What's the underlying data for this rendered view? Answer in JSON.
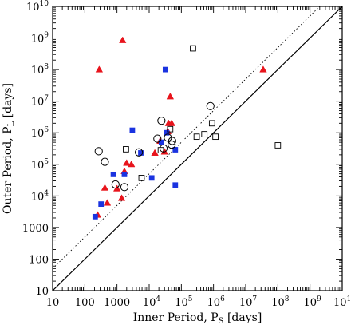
{
  "chart_data": {
    "type": "scatter",
    "title": "",
    "xlabel": "Inner Period, P_S [days]",
    "ylabel": "Outer Period, P_L [days]",
    "xlabel_main": "Inner Period, P",
    "xlabel_sub": "S",
    "xlabel_unit": " [days]",
    "ylabel_main": "Outer Period, P",
    "ylabel_sub": "L",
    "ylabel_unit": " [days]",
    "xscale": "log",
    "yscale": "log",
    "xlim": [
      10,
      10000000000
    ],
    "ylim": [
      10,
      10000000000
    ],
    "x_ticks": [
      {
        "value": 10,
        "label": "10",
        "sup": ""
      },
      {
        "value": 100,
        "label": "100",
        "sup": ""
      },
      {
        "value": 1000,
        "label": "1000",
        "sup": ""
      },
      {
        "value": 10000,
        "label": "10",
        "sup": "4"
      },
      {
        "value": 100000,
        "label": "10",
        "sup": "5"
      },
      {
        "value": 1000000,
        "label": "10",
        "sup": "6"
      },
      {
        "value": 10000000,
        "label": "10",
        "sup": "7"
      },
      {
        "value": 100000000,
        "label": "10",
        "sup": "8"
      },
      {
        "value": 1000000000,
        "label": "10",
        "sup": "9"
      },
      {
        "value": 10000000000,
        "label": "10",
        "sup": "10"
      }
    ],
    "y_ticks": [
      {
        "value": 10,
        "label": "10",
        "sup": ""
      },
      {
        "value": 100,
        "label": "100",
        "sup": ""
      },
      {
        "value": 1000,
        "label": "1000",
        "sup": ""
      },
      {
        "value": 10000,
        "label": "10",
        "sup": "4"
      },
      {
        "value": 100000,
        "label": "10",
        "sup": "5"
      },
      {
        "value": 1000000,
        "label": "10",
        "sup": "6"
      },
      {
        "value": 10000000,
        "label": "10",
        "sup": "7"
      },
      {
        "value": 100000000,
        "label": "10",
        "sup": "8"
      },
      {
        "value": 1000000000,
        "label": "10",
        "sup": "9"
      },
      {
        "value": 10000000000,
        "label": "10",
        "sup": "10"
      }
    ],
    "grid": false,
    "reference_lines": [
      {
        "style": "solid",
        "y_over_x": 1
      },
      {
        "style": "dotted",
        "y_over_x": 5
      }
    ],
    "colors": {
      "red": "#e8141c",
      "blue": "#1a33e0",
      "black": "#000000"
    },
    "series": [
      {
        "marker": "triangle",
        "color": "#e8141c",
        "filled": true,
        "points": [
          {
            "x": 1500,
            "y": 850000000
          },
          {
            "x": 280,
            "y": 100000000
          },
          {
            "x": 35000000,
            "y": 100000000
          },
          {
            "x": 45000,
            "y": 14000000
          },
          {
            "x": 40000,
            "y": 2000000
          },
          {
            "x": 50000,
            "y": 2000000
          },
          {
            "x": 22000,
            "y": 550000
          },
          {
            "x": 38000,
            "y": 1100000
          },
          {
            "x": 30000,
            "y": 250000
          },
          {
            "x": 15000,
            "y": 230000
          },
          {
            "x": 2000,
            "y": 110000
          },
          {
            "x": 2800,
            "y": 100000
          },
          {
            "x": 1700,
            "y": 60000
          },
          {
            "x": 420,
            "y": 18000
          },
          {
            "x": 1000,
            "y": 17000
          },
          {
            "x": 500,
            "y": 6000
          },
          {
            "x": 1400,
            "y": 8500
          },
          {
            "x": 250,
            "y": 2500
          }
        ]
      },
      {
        "marker": "square",
        "color": "#1a33e0",
        "filled": true,
        "points": [
          {
            "x": 32000,
            "y": 100000000
          },
          {
            "x": 3000,
            "y": 1200000
          },
          {
            "x": 35000,
            "y": 1000000
          },
          {
            "x": 24000,
            "y": 500000
          },
          {
            "x": 5500,
            "y": 230000
          },
          {
            "x": 65000,
            "y": 290000
          },
          {
            "x": 770,
            "y": 48000
          },
          {
            "x": 1700,
            "y": 48000
          },
          {
            "x": 12000,
            "y": 37000
          },
          {
            "x": 65000,
            "y": 22000
          },
          {
            "x": 320,
            "y": 5500
          },
          {
            "x": 210,
            "y": 2200
          }
        ]
      },
      {
        "marker": "circle",
        "color": "#000000",
        "filled": false,
        "points": [
          {
            "x": 800000,
            "y": 7000000
          },
          {
            "x": 24000,
            "y": 2400000
          },
          {
            "x": 38000,
            "y": 700000
          },
          {
            "x": 18000,
            "y": 650000
          },
          {
            "x": 52000,
            "y": 550000
          },
          {
            "x": 50000,
            "y": 420000
          },
          {
            "x": 28000,
            "y": 320000
          },
          {
            "x": 270,
            "y": 260000
          },
          {
            "x": 4800,
            "y": 240000
          },
          {
            "x": 420,
            "y": 120000
          },
          {
            "x": 1700,
            "y": 19000
          },
          {
            "x": 900,
            "y": 23000
          }
        ]
      },
      {
        "marker": "square",
        "color": "#000000",
        "filled": false,
        "points": [
          {
            "x": 230000,
            "y": 470000000
          },
          {
            "x": 45000,
            "y": 1300000
          },
          {
            "x": 900000,
            "y": 2000000
          },
          {
            "x": 520000,
            "y": 900000
          },
          {
            "x": 300000,
            "y": 750000
          },
          {
            "x": 1150000,
            "y": 750000
          },
          {
            "x": 100000000,
            "y": 400000
          },
          {
            "x": 1900,
            "y": 300000
          },
          {
            "x": 23000,
            "y": 280000
          },
          {
            "x": 5800,
            "y": 37000
          }
        ]
      }
    ]
  }
}
